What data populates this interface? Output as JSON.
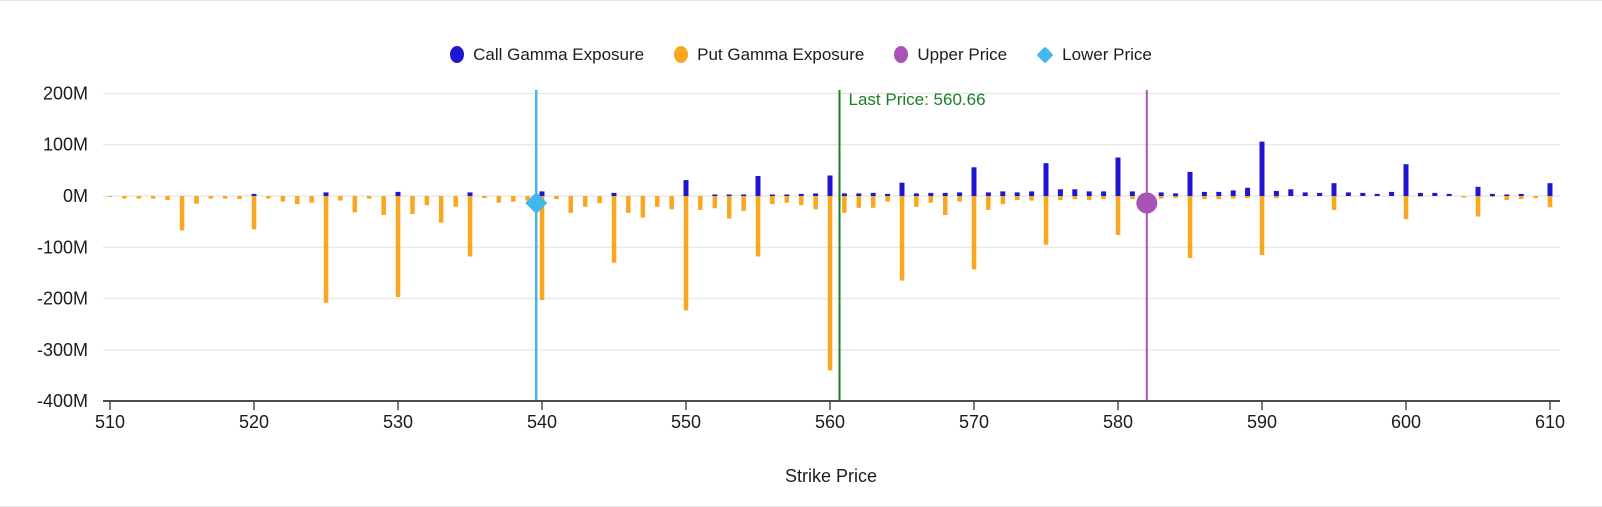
{
  "legend": {
    "items": [
      {
        "label": "Call Gamma Exposure",
        "shape": "circle",
        "color": "#1f16d2"
      },
      {
        "label": "Put Gamma Exposure",
        "shape": "circle",
        "color": "#f9a620"
      },
      {
        "label": "Upper Price",
        "shape": "circle",
        "color": "#a853b5"
      },
      {
        "label": "Lower Price",
        "shape": "diamond",
        "color": "#41b7ee"
      }
    ]
  },
  "chart_data": {
    "type": "bar",
    "title": "",
    "xlabel": "Strike Price",
    "ylabel": "",
    "values_unit": "millions (M)",
    "grid": true,
    "legend_position": "top-center",
    "ylim": [
      -400,
      200
    ],
    "xlim": [
      509.5,
      610.7
    ],
    "y_ticks": [
      {
        "value": 200,
        "label": "200M"
      },
      {
        "value": 100,
        "label": "100M"
      },
      {
        "value": 0,
        "label": "0M"
      },
      {
        "value": -100,
        "label": "-100M"
      },
      {
        "value": -200,
        "label": "-200M"
      },
      {
        "value": -300,
        "label": "-300M"
      },
      {
        "value": -400,
        "label": "-400M"
      }
    ],
    "x_ticks": [
      510,
      520,
      530,
      540,
      550,
      560,
      570,
      580,
      590,
      600,
      610
    ],
    "strikes_range": {
      "min": 510,
      "max": 610,
      "step": 1
    },
    "series": [
      {
        "name": "Call Gamma Exposure",
        "color": "#1f16d2",
        "values": [
          0,
          0,
          0,
          0,
          0,
          0,
          0,
          0,
          0,
          0,
          4,
          0,
          0,
          0,
          0,
          7,
          0,
          0,
          0,
          0,
          8,
          0,
          0,
          0,
          0,
          7,
          0,
          0,
          0,
          0,
          9,
          0,
          0,
          0,
          0,
          6,
          0,
          0,
          0,
          0,
          31,
          0,
          3,
          3,
          3,
          39,
          3,
          3,
          4,
          5,
          40,
          5,
          5,
          6,
          4,
          26,
          5,
          6,
          6,
          7,
          56,
          7,
          9,
          7,
          9,
          64,
          13,
          13,
          9,
          9,
          75,
          9,
          5,
          7,
          5,
          47,
          8,
          8,
          11,
          16,
          106,
          10,
          13,
          7,
          6,
          25,
          7,
          6,
          4,
          8,
          62,
          6,
          6,
          4,
          0,
          18,
          4,
          3,
          4,
          0,
          25
        ]
      },
      {
        "name": "Put Gamma Exposure",
        "color": "#f9a620",
        "values": [
          -2,
          -5,
          -5,
          -5,
          -8,
          -67,
          -15,
          -5,
          -5,
          -6,
          -65,
          -5,
          -11,
          -16,
          -13,
          -208,
          -9,
          -32,
          -5,
          -37,
          -197,
          -35,
          -18,
          -52,
          -21,
          -118,
          -4,
          -13,
          -11,
          -9,
          -203,
          -6,
          -33,
          -21,
          -14,
          -130,
          -33,
          -42,
          -21,
          -26,
          -223,
          -27,
          -24,
          -44,
          -29,
          -118,
          -16,
          -13,
          -18,
          -26,
          -340,
          -33,
          -23,
          -23,
          -11,
          -165,
          -21,
          -13,
          -37,
          -11,
          -143,
          -27,
          -16,
          -8,
          -9,
          -95,
          -8,
          -6,
          -8,
          -6,
          -76,
          -6,
          -5,
          -5,
          -4,
          -121,
          -6,
          -6,
          -5,
          -4,
          -115,
          -4,
          0,
          0,
          0,
          -27,
          0,
          0,
          0,
          0,
          -45,
          -2,
          0,
          0,
          -3,
          -40,
          -2,
          -8,
          -6,
          -4,
          -22
        ]
      }
    ],
    "markers": {
      "lower_price": {
        "x": 539.6,
        "shape": "diamond",
        "color": "#41b7ee"
      },
      "upper_price": {
        "x": 582.0,
        "shape": "circle",
        "color": "#a853b5"
      }
    },
    "annotations": {
      "last_price": {
        "x": 560.66,
        "label": "Last Price: 560.66",
        "color": "#1b7e24"
      }
    },
    "axis_colors": {
      "grid": "#e8e8e8",
      "axis_line": "#4c4c4c",
      "tick_text": "#1c1c1c"
    }
  }
}
